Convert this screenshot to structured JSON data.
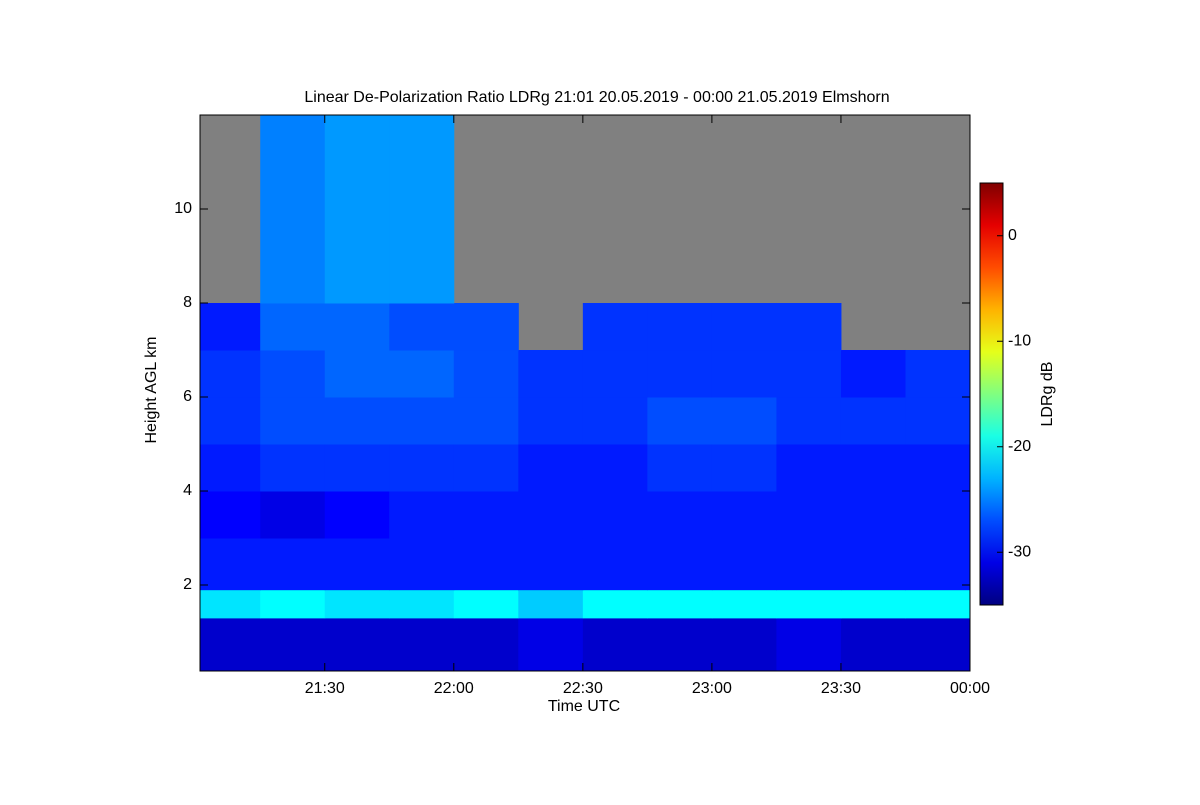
{
  "chart_data": {
    "type": "heatmap",
    "title": "Linear De-Polarization Ratio LDRg   21:01 20.05.2019 - 00:00 21.05.2019 Elmshorn",
    "xlabel": "Time UTC",
    "ylabel": "Height AGL km",
    "colorbar_label": "LDRg dB",
    "colormap": "jet",
    "missing_color": "#808080",
    "x_edges": [
      21.0167,
      21.25,
      21.5,
      21.75,
      22,
      22.25,
      22.5,
      22.75,
      23,
      23.25,
      23.5,
      23.75,
      24
    ],
    "y_edges": [
      0.17,
      1.3,
      1.9,
      3,
      4,
      5,
      6,
      7,
      8,
      12
    ],
    "z": [
      [
        -32,
        -32,
        -32,
        -32,
        -32,
        -31,
        -32,
        -32,
        -32,
        -31,
        -32,
        -32
      ],
      [
        -21,
        -20,
        -21,
        -21,
        -20,
        -22,
        -20,
        -20,
        -20,
        -20,
        -20,
        -20
      ],
      [
        -29,
        -29,
        -29,
        -29,
        -29,
        -29,
        -29,
        -29,
        -29,
        -29,
        -29,
        -29
      ],
      [
        -30,
        -31,
        -30,
        -29,
        -29,
        -29,
        -29,
        -29,
        -29,
        -29,
        -29,
        -29
      ],
      [
        -29,
        -28,
        -28,
        -28,
        -28,
        -29,
        -29,
        -28,
        -28,
        -29,
        -29,
        -29
      ],
      [
        -28,
        -27,
        -27,
        -27,
        -27,
        -28,
        -28,
        -27,
        -27,
        -28,
        -28,
        -28
      ],
      [
        -28,
        -27,
        -26,
        -26,
        -27,
        -28,
        -28,
        -28,
        -28,
        -28,
        -29,
        -28
      ],
      [
        -29,
        -26,
        -26,
        -27,
        -27,
        null,
        -28,
        -28,
        -28,
        -28,
        null,
        null
      ],
      [
        null,
        -25,
        -24,
        -24,
        null,
        null,
        null,
        null,
        null,
        null,
        null,
        null
      ]
    ],
    "xlim": [
      21.0167,
      24
    ],
    "ylim": [
      0.17,
      12
    ],
    "clim": [
      -35,
      5
    ],
    "xticks": [
      {
        "value": 21.5,
        "label": "21:30"
      },
      {
        "value": 22,
        "label": "22:00"
      },
      {
        "value": 22.5,
        "label": "22:30"
      },
      {
        "value": 23,
        "label": "23:00"
      },
      {
        "value": 23.5,
        "label": "23:30"
      },
      {
        "value": 24,
        "label": "00:00"
      }
    ],
    "yticks": [
      2,
      4,
      6,
      8,
      10
    ],
    "cticks": [
      0,
      -10,
      -20,
      -30
    ]
  }
}
